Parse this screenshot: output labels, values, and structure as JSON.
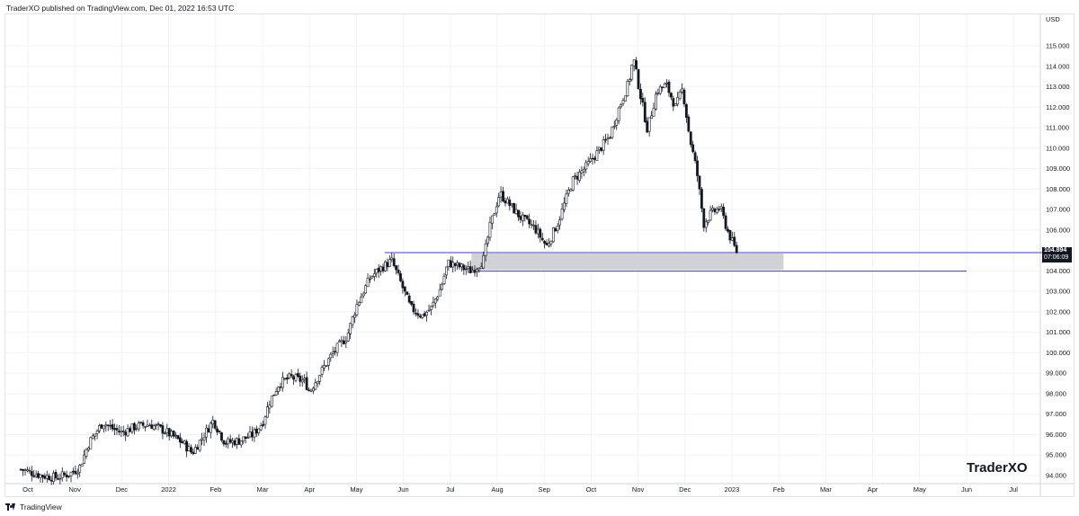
{
  "header": {
    "text": "TraderXO published on TradingView.com, Dec 01, 2022 16:53 UTC"
  },
  "watermark": "TraderXO",
  "footer": {
    "brand": "TradingView"
  },
  "price_tag": {
    "price": "104.894",
    "countdown": "07:06:09"
  },
  "colors": {
    "candle": "#131722",
    "level_line": "#3d3dc9",
    "zone_fill": "#d1d2d6",
    "grid": "#f0f3fa"
  },
  "chart_data": {
    "type": "candlestick",
    "currency": "USD",
    "y_ticks": [
      "115.000",
      "114.000",
      "113.000",
      "112.000",
      "111.000",
      "110.000",
      "109.000",
      "108.000",
      "107.000",
      "106.000",
      "104.000",
      "103.000",
      "102.000",
      "101.000",
      "100.000",
      "99.000",
      "98.000",
      "97.000",
      "96.000",
      "95.000",
      "94.000"
    ],
    "ylim": [
      93.6,
      115.9
    ],
    "x_ticks": [
      {
        "label": "Oct",
        "t": 0
      },
      {
        "label": "Nov",
        "t": 1
      },
      {
        "label": "Dec",
        "t": 2
      },
      {
        "label": "2022",
        "t": 3
      },
      {
        "label": "Feb",
        "t": 4
      },
      {
        "label": "Mar",
        "t": 5
      },
      {
        "label": "Apr",
        "t": 6
      },
      {
        "label": "May",
        "t": 7
      },
      {
        "label": "Jun",
        "t": 8
      },
      {
        "label": "Jul",
        "t": 9
      },
      {
        "label": "Aug",
        "t": 10
      },
      {
        "label": "Sep",
        "t": 11
      },
      {
        "label": "Oct",
        "t": 12
      },
      {
        "label": "Nov",
        "t": 13
      },
      {
        "label": "Dec",
        "t": 14
      },
      {
        "label": "2023",
        "t": 15
      },
      {
        "label": "Feb",
        "t": 16
      },
      {
        "label": "Mar",
        "t": 17
      },
      {
        "label": "Apr",
        "t": 18
      },
      {
        "label": "May",
        "t": 19
      },
      {
        "label": "Jun",
        "t": 20
      },
      {
        "label": "Jul",
        "t": 21
      }
    ],
    "trend_path": [
      [
        -0.15,
        94.3
      ],
      [
        0.0,
        94.2
      ],
      [
        0.3,
        94.0
      ],
      [
        0.6,
        93.9
      ],
      [
        0.9,
        94.1
      ],
      [
        1.1,
        94.4
      ],
      [
        1.3,
        95.6
      ],
      [
        1.6,
        96.6
      ],
      [
        1.8,
        96.3
      ],
      [
        2.0,
        96.1
      ],
      [
        2.3,
        96.4
      ],
      [
        2.6,
        96.5
      ],
      [
        2.9,
        96.2
      ],
      [
        3.1,
        95.9
      ],
      [
        3.3,
        95.6
      ],
      [
        3.5,
        95.1
      ],
      [
        3.7,
        95.8
      ],
      [
        3.95,
        96.7
      ],
      [
        4.2,
        95.6
      ],
      [
        4.5,
        95.7
      ],
      [
        4.8,
        96.0
      ],
      [
        5.0,
        96.6
      ],
      [
        5.15,
        97.6
      ],
      [
        5.35,
        98.5
      ],
      [
        5.6,
        98.8
      ],
      [
        5.9,
        98.6
      ],
      [
        6.0,
        98.1
      ],
      [
        6.2,
        98.9
      ],
      [
        6.5,
        100.0
      ],
      [
        6.8,
        100.8
      ],
      [
        7.0,
        102.3
      ],
      [
        7.3,
        103.7
      ],
      [
        7.5,
        104.1
      ],
      [
        7.75,
        104.5
      ],
      [
        7.95,
        103.4
      ],
      [
        8.15,
        102.2
      ],
      [
        8.4,
        101.8
      ],
      [
        8.6,
        102.2
      ],
      [
        8.8,
        103.2
      ],
      [
        8.95,
        104.4
      ],
      [
        9.2,
        104.2
      ],
      [
        9.45,
        104.0
      ],
      [
        9.7,
        104.5
      ],
      [
        9.85,
        106.2
      ],
      [
        10.05,
        107.8
      ],
      [
        10.2,
        107.4
      ],
      [
        10.5,
        106.6
      ],
      [
        10.8,
        106.1
      ],
      [
        11.05,
        105.2
      ],
      [
        11.3,
        106.4
      ],
      [
        11.6,
        108.4
      ],
      [
        11.9,
        109.1
      ],
      [
        12.1,
        109.7
      ],
      [
        12.4,
        110.6
      ],
      [
        12.6,
        112.0
      ],
      [
        12.8,
        113.2
      ],
      [
        12.9,
        114.4
      ],
      [
        13.05,
        112.6
      ],
      [
        13.2,
        110.9
      ],
      [
        13.4,
        112.8
      ],
      [
        13.6,
        113.1
      ],
      [
        13.8,
        112.0
      ],
      [
        13.95,
        112.9
      ],
      [
        14.1,
        110.5
      ],
      [
        14.25,
        108.9
      ],
      [
        14.4,
        106.3
      ],
      [
        14.55,
        106.8
      ],
      [
        14.75,
        107.1
      ],
      [
        14.9,
        106.0
      ],
      [
        15.1,
        104.9
      ]
    ],
    "horizontal_levels": [
      {
        "price": 104.894,
        "t_start": 7.6,
        "t_end": 21.65
      },
      {
        "price": 103.99,
        "t_start": 9.45,
        "t_end": 20.0
      }
    ],
    "zone": {
      "t_start": 9.45,
      "t_end": 16.1,
      "price_low": 104.05,
      "price_high": 104.85
    }
  }
}
